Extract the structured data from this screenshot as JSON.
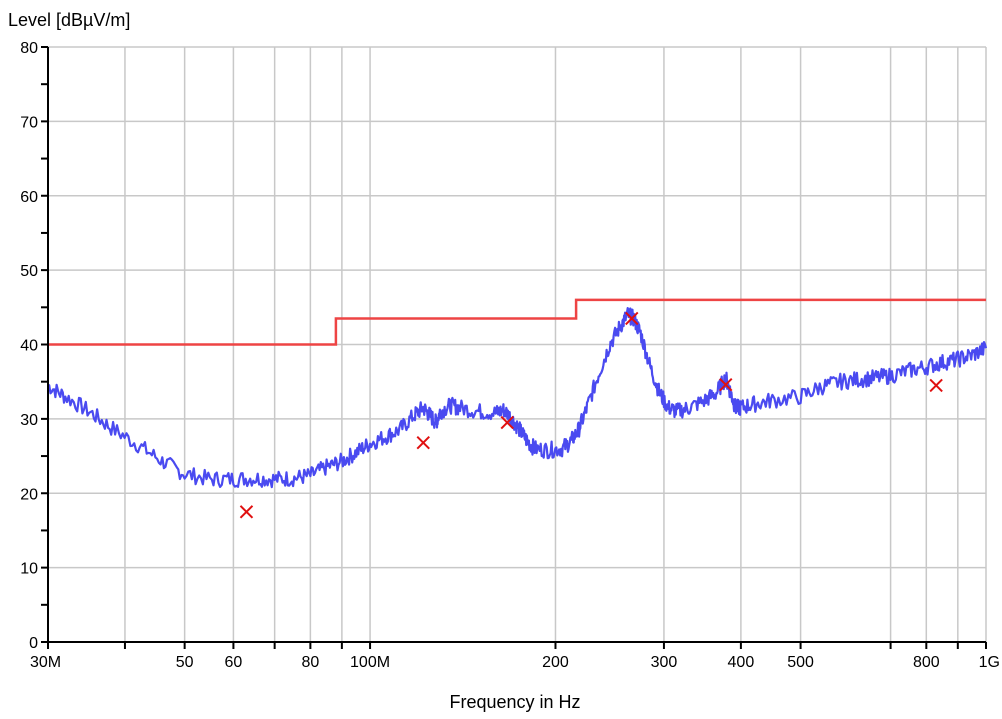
{
  "chart_data": {
    "type": "line",
    "title": "",
    "ylabel": "Level [dBµV/m]",
    "xlabel": "Frequency in Hz",
    "x_scale": "log",
    "xlim_hz": [
      30000000,
      1000000000
    ],
    "ylim": [
      0,
      80
    ],
    "grid": true,
    "colors": {
      "measurement": "#4a4af0",
      "limit": "#ee4444",
      "markers": "#e01010",
      "grid": "#c8c8c8",
      "axis": "#000000"
    },
    "x_ticks": [
      {
        "value_hz": 30000000,
        "label": "30M"
      },
      {
        "value_hz": 50000000,
        "label": "50"
      },
      {
        "value_hz": 60000000,
        "label": "60"
      },
      {
        "value_hz": 80000000,
        "label": "80"
      },
      {
        "value_hz": 100000000,
        "label": "100M"
      },
      {
        "value_hz": 200000000,
        "label": "200"
      },
      {
        "value_hz": 300000000,
        "label": "300"
      },
      {
        "value_hz": 400000000,
        "label": "400"
      },
      {
        "value_hz": 500000000,
        "label": "500"
      },
      {
        "value_hz": 800000000,
        "label": "800"
      },
      {
        "value_hz": 1000000000,
        "label": "1G"
      }
    ],
    "x_minor_gridlines_hz": [
      40000000,
      70000000,
      90000000,
      700000000,
      900000000
    ],
    "y_ticks": [
      {
        "value": 0,
        "label": "0"
      },
      {
        "value": 10,
        "label": "10"
      },
      {
        "value": 20,
        "label": "20"
      },
      {
        "value": 30,
        "label": "30"
      },
      {
        "value": 40,
        "label": "40"
      },
      {
        "value": 50,
        "label": "50"
      },
      {
        "value": 60,
        "label": "60"
      },
      {
        "value": 70,
        "label": "70"
      },
      {
        "value": 80,
        "label": "80"
      }
    ],
    "limit_line": [
      [
        30000000,
        40
      ],
      [
        88000000,
        40
      ],
      [
        88000000,
        43.5
      ],
      [
        216000000,
        43.5
      ],
      [
        216000000,
        46
      ],
      [
        1000000000,
        46
      ]
    ],
    "measurement_series": [
      [
        30000000,
        34.5
      ],
      [
        32000000,
        33.0
      ],
      [
        35000000,
        31.0
      ],
      [
        38000000,
        28.8
      ],
      [
        42000000,
        26.5
      ],
      [
        46000000,
        24.3
      ],
      [
        50000000,
        22.6
      ],
      [
        55000000,
        21.9
      ],
      [
        60000000,
        21.9
      ],
      [
        65000000,
        22.0
      ],
      [
        70000000,
        21.9
      ],
      [
        75000000,
        22.0
      ],
      [
        80000000,
        22.4
      ],
      [
        85000000,
        23.5
      ],
      [
        90000000,
        24.3
      ],
      [
        95000000,
        25.5
      ],
      [
        100000000,
        26.7
      ],
      [
        106000000,
        27.6
      ],
      [
        112000000,
        28.6
      ],
      [
        118000000,
        30.5
      ],
      [
        122000000,
        31.5
      ],
      [
        125000000,
        30.5
      ],
      [
        128000000,
        29.5
      ],
      [
        130000000,
        31.0
      ],
      [
        135000000,
        31.8
      ],
      [
        140000000,
        31.5
      ],
      [
        150000000,
        31.0
      ],
      [
        160000000,
        30.8
      ],
      [
        165000000,
        31.2
      ],
      [
        170000000,
        30.0
      ],
      [
        175000000,
        28.5
      ],
      [
        180000000,
        27.0
      ],
      [
        185000000,
        26.0
      ],
      [
        195000000,
        25.8
      ],
      [
        205000000,
        26.0
      ],
      [
        212000000,
        27.0
      ],
      [
        218000000,
        28.5
      ],
      [
        225000000,
        31.5
      ],
      [
        235000000,
        36.0
      ],
      [
        245000000,
        40.0
      ],
      [
        255000000,
        42.5
      ],
      [
        262000000,
        44.0
      ],
      [
        268000000,
        43.5
      ],
      [
        275000000,
        41.5
      ],
      [
        285000000,
        37.0
      ],
      [
        295000000,
        33.5
      ],
      [
        305000000,
        31.5
      ],
      [
        315000000,
        31.0
      ],
      [
        330000000,
        31.5
      ],
      [
        350000000,
        32.5
      ],
      [
        365000000,
        33.5
      ],
      [
        378000000,
        35.5
      ],
      [
        385000000,
        33.5
      ],
      [
        392000000,
        31.5
      ],
      [
        400000000,
        31.5
      ],
      [
        420000000,
        32.0
      ],
      [
        450000000,
        32.5
      ],
      [
        500000000,
        33.0
      ],
      [
        540000000,
        34.3
      ],
      [
        580000000,
        35.0
      ],
      [
        620000000,
        35.3
      ],
      [
        660000000,
        35.5
      ],
      [
        700000000,
        35.8
      ],
      [
        750000000,
        36.5
      ],
      [
        800000000,
        37.0
      ],
      [
        850000000,
        37.6
      ],
      [
        900000000,
        38.0
      ],
      [
        950000000,
        38.6
      ],
      [
        1000000000,
        39.5
      ]
    ],
    "peak_markers": [
      [
        63000000,
        17.5
      ],
      [
        122000000,
        26.8
      ],
      [
        167000000,
        29.5
      ],
      [
        266000000,
        43.5
      ],
      [
        378000000,
        34.6
      ],
      [
        830000000,
        34.5
      ]
    ]
  }
}
